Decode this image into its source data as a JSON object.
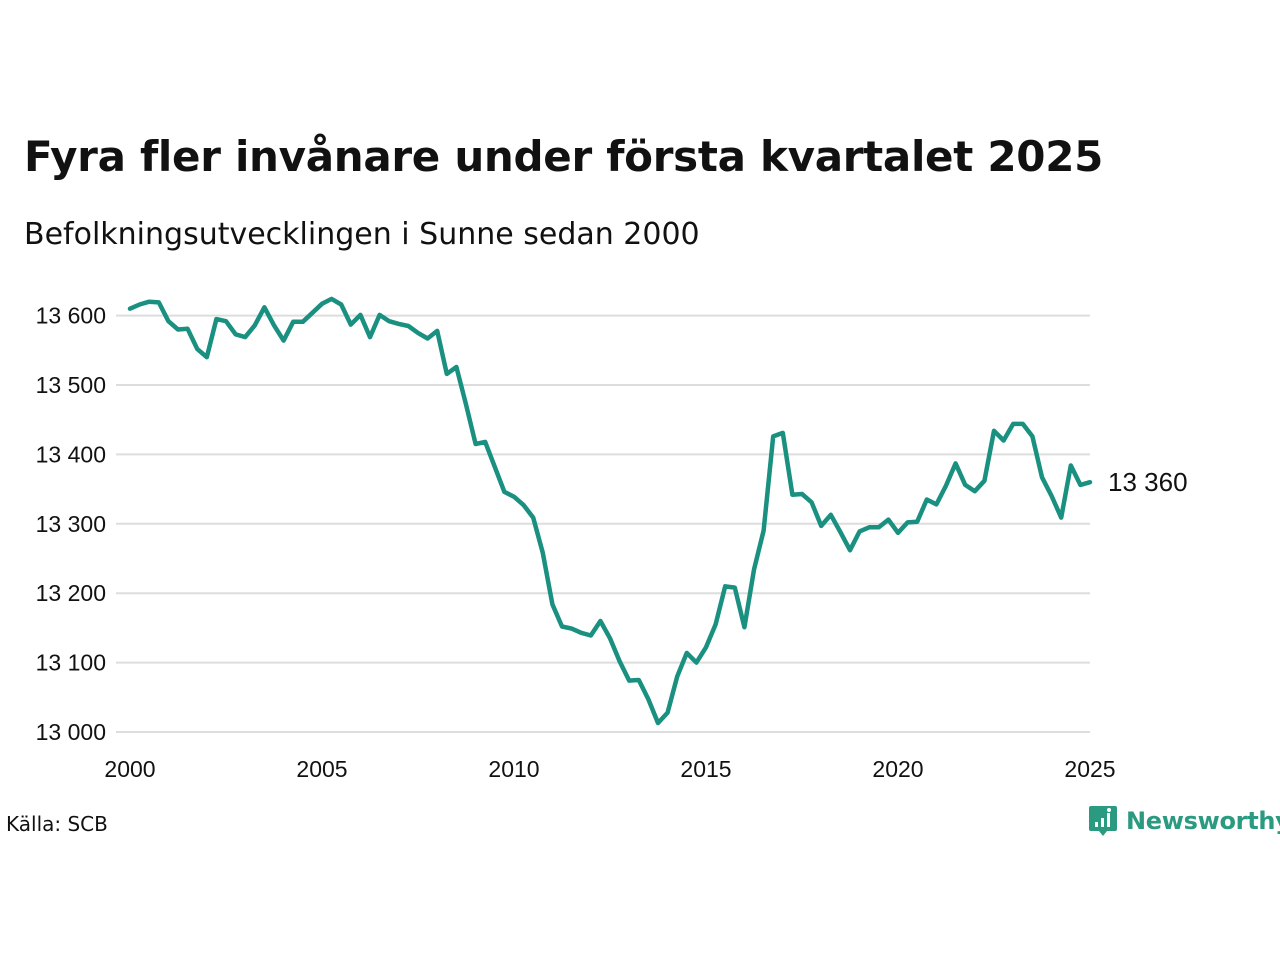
{
  "title": "Fyra fler invånare under första kvartalet 2025",
  "subtitle": "Befolkningsutvecklingen i Sunne sedan 2000",
  "source": "Källa: SCB",
  "logo_text": "Newsworthy",
  "colors": {
    "line": "#1a9080",
    "grid": "#dddddd",
    "logo": "#2a9a80",
    "text": "#111111"
  },
  "chart_data": {
    "type": "line",
    "x_ticks": [
      "2000",
      "2005",
      "2010",
      "2015",
      "2020",
      "2025"
    ],
    "y_ticks": [
      "13 000",
      "13 100",
      "13 200",
      "13 300",
      "13 400",
      "13 500",
      "13 600"
    ],
    "xlim": [
      2000,
      2025
    ],
    "ylim": [
      13000,
      13630
    ],
    "grid": "horizontal",
    "end_label": "13 360",
    "series": [
      {
        "x": [
          2000.0,
          2000.25,
          2000.5,
          2000.75,
          2001.0,
          2001.25,
          2001.5,
          2001.75,
          2002.0,
          2002.25,
          2002.5,
          2002.75,
          2003.0,
          2003.25,
          2003.5,
          2003.75,
          2004.0,
          2004.25,
          2004.5,
          2004.75,
          2005.0,
          2005.25,
          2005.5,
          2005.75,
          2006.0,
          2006.25,
          2006.5,
          2006.75,
          2007.0,
          2007.25,
          2007.5,
          2007.75,
          2008.0,
          2008.25,
          2008.5,
          2008.75,
          2009.0,
          2009.25,
          2009.5,
          2009.75,
          2010.0,
          2010.25,
          2010.5,
          2010.75,
          2011.0,
          2011.25,
          2011.5,
          2011.75,
          2012.0,
          2012.25,
          2012.5,
          2012.75,
          2013.0,
          2013.25,
          2013.5,
          2013.75,
          2014.0,
          2014.25,
          2014.5,
          2014.75,
          2015.0,
          2015.25,
          2015.5,
          2015.75,
          2016.0,
          2016.25,
          2016.5,
          2016.75,
          2017.0,
          2017.25,
          2017.5,
          2017.75,
          2018.0,
          2018.25,
          2018.5,
          2018.75,
          2019.0,
          2019.25,
          2019.5,
          2019.75,
          2020.0,
          2020.25,
          2020.5,
          2020.75,
          2021.0,
          2021.25,
          2021.5,
          2021.75,
          2022.0,
          2022.25,
          2022.5,
          2022.75,
          2023.0,
          2023.25,
          2023.5,
          2023.75,
          2024.0,
          2024.25,
          2024.5,
          2024.75,
          2025.0
        ],
        "values": [
          13610,
          13616,
          13620,
          13619,
          13592,
          13580,
          13581,
          13552,
          13540,
          13595,
          13592,
          13573,
          13569,
          13586,
          13612,
          13586,
          13564,
          13591,
          13591,
          13604,
          13617,
          13624,
          13616,
          13587,
          13601,
          13569,
          13601,
          13592,
          13588,
          13585,
          13575,
          13567,
          13578,
          13516,
          13526,
          13472,
          13415,
          13418,
          13382,
          13346,
          13339,
          13327,
          13309,
          13258,
          13184,
          13152,
          13149,
          13143,
          13139,
          13160,
          13135,
          13102,
          13074,
          13075,
          13047,
          13013,
          13028,
          13080,
          13114,
          13100,
          13122,
          13155,
          13210,
          13208,
          13151,
          13234,
          13290,
          13426,
          13431,
          13342,
          13343,
          13331,
          13297,
          13313,
          13288,
          13262,
          13289,
          13295,
          13295,
          13306,
          13287,
          13302,
          13303,
          13335,
          13328,
          13355,
          13387,
          13356,
          13347,
          13362,
          13434,
          13420,
          13444,
          13444,
          13426,
          13367,
          13340,
          13309,
          13384,
          13356,
          13360
        ]
      }
    ]
  }
}
